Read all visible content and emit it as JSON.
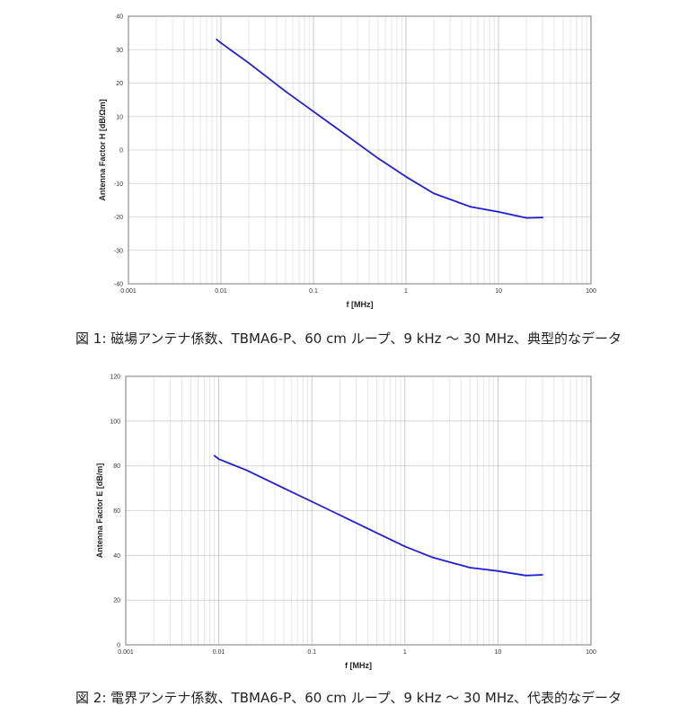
{
  "charts": [
    {
      "caption": "図 1: 磁場アンテナ係数、TBMA6-P、60 cm ループ、9 kHz ～ 30 MHz、典型的なデータ",
      "chart_data": {
        "type": "line",
        "xscale": "log",
        "xlabel": "f [MHz]",
        "ylabel": "Antenna Factor H [dB/Ωm]",
        "xlim": [
          0.001,
          100
        ],
        "ylim": [
          -40,
          40
        ],
        "xticks": [
          "0.001",
          "0.01",
          "0.1",
          "1",
          "10",
          "100"
        ],
        "yticks": [
          "-40",
          "-30",
          "-20",
          "-10",
          "0",
          "10",
          "20",
          "30",
          "40"
        ],
        "grid": true,
        "line_color": "#1f1fd6",
        "x": [
          0.009,
          0.01,
          0.02,
          0.05,
          0.1,
          0.2,
          0.5,
          1,
          2,
          5,
          10,
          20,
          30
        ],
        "y": [
          33,
          32,
          26,
          17.5,
          11.5,
          5.5,
          -2.5,
          -8,
          -13,
          -17,
          -18.5,
          -20.3,
          -20.2
        ]
      }
    },
    {
      "caption": "図 2: 電界アンテナ係数、TBMA6-P、60 cm ループ、9 kHz ～ 30 MHz、代表的なデータ",
      "chart_data": {
        "type": "line",
        "xscale": "log",
        "xlabel": "f [MHz]",
        "ylabel": "Antenna Factor E [dB/m]",
        "xlim": [
          0.001,
          100
        ],
        "ylim": [
          0,
          120
        ],
        "xticks": [
          "0.001",
          "0.01",
          "0.1",
          "1",
          "10",
          "100"
        ],
        "yticks": [
          "0",
          "20",
          "40",
          "60",
          "80",
          "100",
          "120"
        ],
        "grid": true,
        "line_color": "#1f1fd6",
        "x": [
          0.009,
          0.01,
          0.02,
          0.05,
          0.1,
          0.2,
          0.5,
          1,
          2,
          5,
          10,
          20,
          30
        ],
        "y": [
          84.5,
          83,
          78,
          70,
          64,
          58,
          50,
          44,
          39,
          34.5,
          33,
          31,
          31.3
        ]
      }
    }
  ]
}
